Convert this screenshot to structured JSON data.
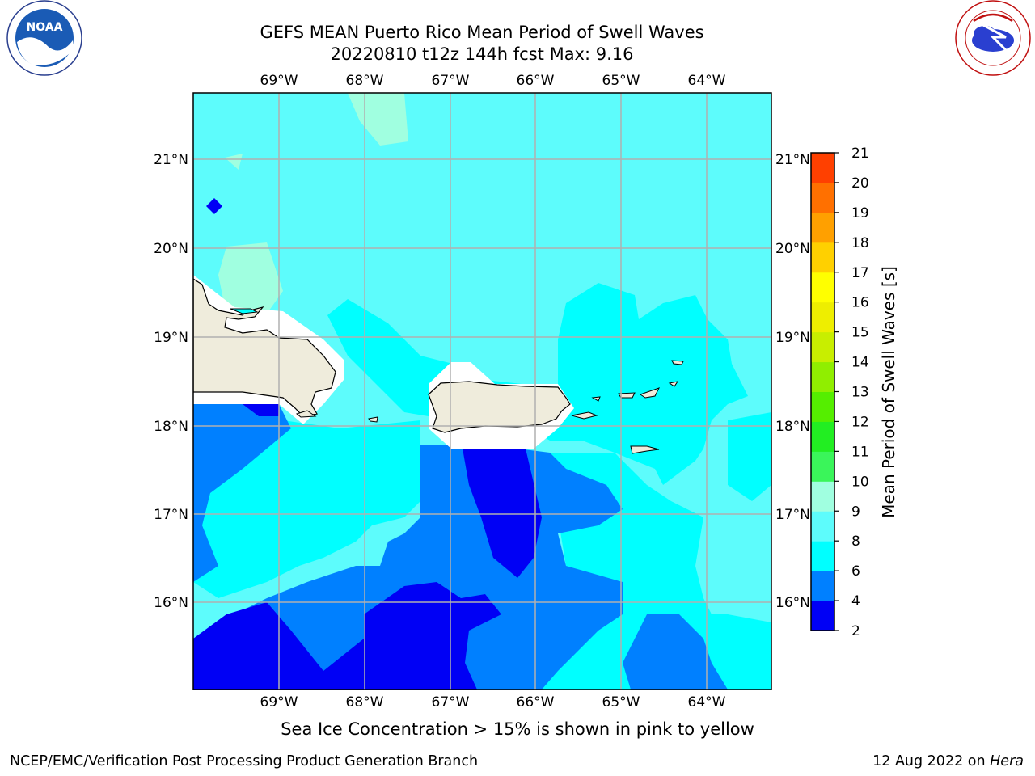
{
  "title": {
    "line1": "GEFS MEAN Puerto Rico Mean Period of Swell Waves",
    "line2": "20220810 t12z 144h fcst   Max: 9.16"
  },
  "logos": {
    "left": "NOAA",
    "left_ring": "NATIONAL OCEANIC AND ATMOSPHERIC ADMINISTRATION · U.S. DEPARTMENT OF COMMERCE",
    "right_ring": "NATIONAL WEATHER SERVICE"
  },
  "axes": {
    "lon_labels": [
      "69°W",
      "68°W",
      "67°W",
      "66°W",
      "65°W",
      "64°W"
    ],
    "lat_labels": [
      "21°N",
      "20°N",
      "19°N",
      "18°N",
      "17°N",
      "16°N"
    ]
  },
  "colorbar": {
    "label": "Mean Period of Swell Waves [s]",
    "ticks": [
      "2",
      "4",
      "6",
      "8",
      "9",
      "10",
      "11",
      "12",
      "13",
      "14",
      "15",
      "16",
      "17",
      "18",
      "19",
      "20",
      "21"
    ],
    "colors": [
      "#0000f5",
      "#0080ff",
      "#00ffff",
      "#5dfcfc",
      "#a0ffe0",
      "#3af55a",
      "#22ee22",
      "#55ee00",
      "#90ee00",
      "#c8ee00",
      "#eeee00",
      "#ffff00",
      "#ffd000",
      "#ffa000",
      "#ff7000",
      "#ff4000",
      "#ff0000"
    ]
  },
  "caption": "Sea Ice Concentration > 15% is shown in pink to yellow",
  "footer": {
    "left": "NCEP/EMC/Verification Post Processing Product Generation Branch",
    "right_date": "12 Aug 2022 on ",
    "right_host": "Hera"
  }
}
